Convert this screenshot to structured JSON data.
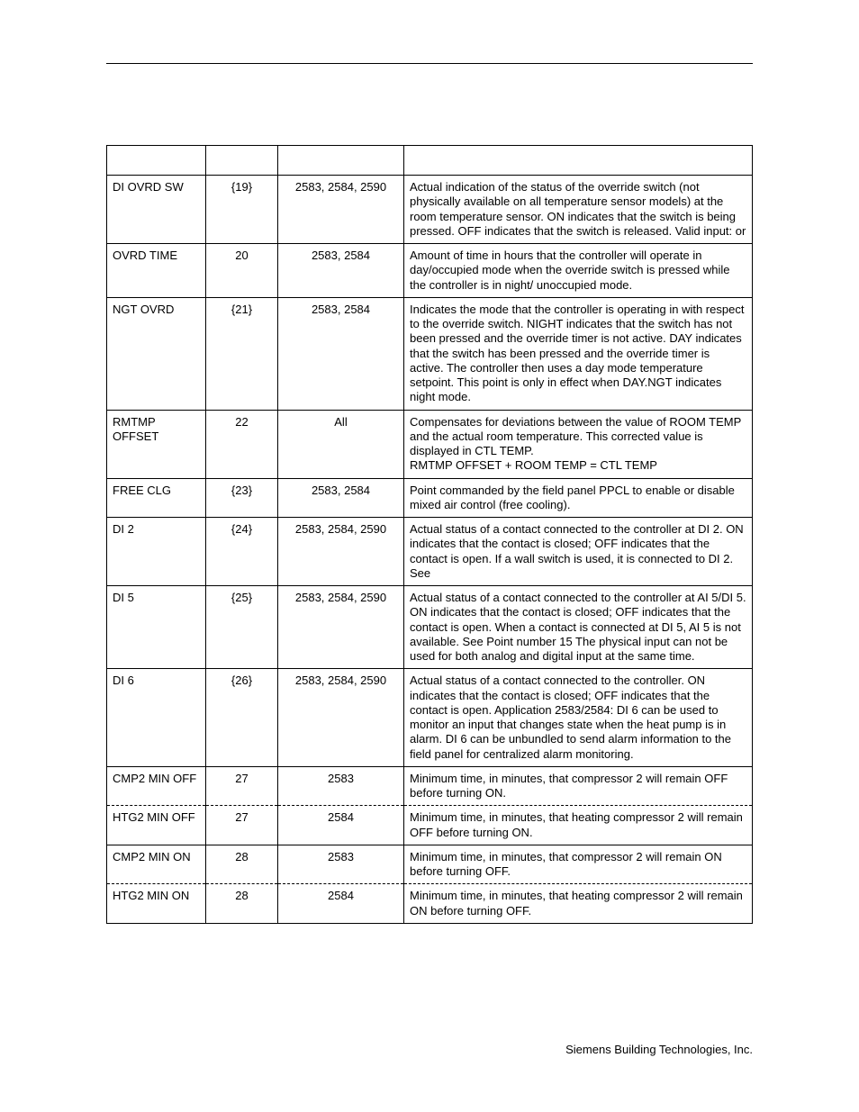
{
  "footer": "Siemens Building Technologies, Inc.",
  "rows": [
    {
      "name": "DI OVRD SW",
      "addr": "{19}",
      "apps": "2583, 2584, 2590",
      "desc": "Actual indication of the status of the override switch (not physically available on all temperature sensor models) at the room temperature sensor. ON indicates that the switch is being pressed. OFF indicates that the switch is released. Valid input:           or"
    },
    {
      "name": "OVRD TIME",
      "addr": "20",
      "apps": "2583, 2584",
      "desc": "Amount of time in hours that the controller will operate in day/occupied mode when the override switch is pressed while the controller is in night/ unoccupied mode."
    },
    {
      "name": "NGT OVRD",
      "addr": "{21}",
      "apps": "2583, 2584",
      "desc": "Indicates the mode that the controller is operating in with respect to the override switch. NIGHT indicates that the switch has not been pressed and the override timer is not active. DAY indicates that the switch has been pressed and the override timer is active. The controller then uses a day mode temperature setpoint. This point is only in effect when DAY.NGT indicates night mode."
    },
    {
      "name": "RMTMP OFFSET",
      "addr": "22",
      "apps": "All",
      "desc": "Compensates for deviations between the value of ROOM TEMP and the actual room temperature. This corrected value is displayed in CTL TEMP.\nRMTMP OFFSET + ROOM TEMP = CTL TEMP"
    },
    {
      "name": "FREE CLG",
      "addr": "{23}",
      "apps": "2583, 2584",
      "desc": "Point commanded by the field panel PPCL to enable or disable mixed air control (free cooling)."
    },
    {
      "name": "DI 2",
      "addr": "{24}",
      "apps": "2583, 2584, 2590",
      "desc": "Actual status of a contact connected to the controller at DI 2. ON indicates that the contact is closed; OFF indicates that the contact is open. If a wall switch is used, it is connected to DI 2. See"
    },
    {
      "name": "DI 5",
      "addr": "{25}",
      "apps": "2583, 2584, 2590",
      "desc": "Actual status of a contact connected to the controller at AI 5/DI 5. ON indicates that the contact is closed; OFF indicates that the contact is open. When a contact is connected at DI 5, AI 5 is not available. See Point number 15  The physical input can not be used for both analog and digital input at the same time."
    },
    {
      "name": "DI 6",
      "addr": "{26}",
      "apps": "2583, 2584, 2590",
      "desc": "Actual status of a contact connected to the controller. ON indicates that the contact is closed; OFF indicates that the contact is open. Application 2583/2584: DI 6 can be used to monitor an input that changes state when the heat pump is in alarm. DI 6 can be unbundled to send alarm information to the field panel for centralized alarm monitoring."
    },
    {
      "name": "CMP2 MIN OFF",
      "addr": "27",
      "apps": "2583",
      "desc": "Minimum time, in minutes, that compressor 2 will remain OFF before turning ON.",
      "dashBelow": true
    },
    {
      "name": "HTG2 MIN OFF",
      "addr": "27",
      "apps": "2584",
      "desc": "Minimum time, in minutes, that heating compressor 2 will remain OFF before turning ON.",
      "dashAbove": true
    },
    {
      "name": "CMP2 MIN ON",
      "addr": "28",
      "apps": "2583",
      "desc": "Minimum time, in minutes, that compressor 2 will remain ON before turning OFF.",
      "dashBelow": true
    },
    {
      "name": "HTG2 MIN ON",
      "addr": "28",
      "apps": "2584",
      "desc": "Minimum time, in minutes, that heating compressor 2 will remain ON before turning OFF.",
      "dashAbove": true
    }
  ]
}
